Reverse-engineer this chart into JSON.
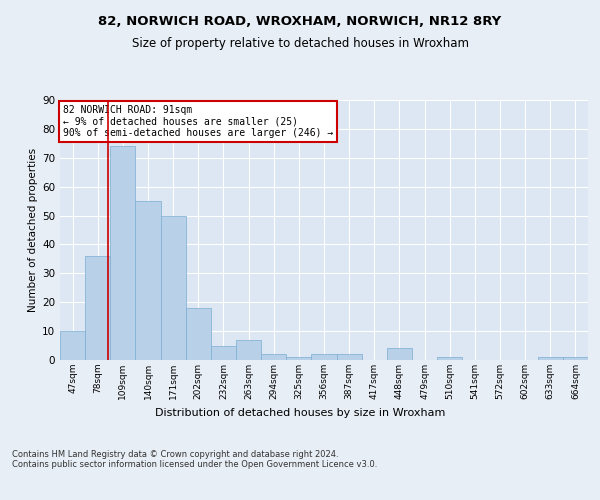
{
  "title1": "82, NORWICH ROAD, WROXHAM, NORWICH, NR12 8RY",
  "title2": "Size of property relative to detached houses in Wroxham",
  "xlabel": "Distribution of detached houses by size in Wroxham",
  "ylabel": "Number of detached properties",
  "footnote": "Contains HM Land Registry data © Crown copyright and database right 2024.\nContains public sector information licensed under the Open Government Licence v3.0.",
  "categories": [
    "47sqm",
    "78sqm",
    "109sqm",
    "140sqm",
    "171sqm",
    "202sqm",
    "232sqm",
    "263sqm",
    "294sqm",
    "325sqm",
    "356sqm",
    "387sqm",
    "417sqm",
    "448sqm",
    "479sqm",
    "510sqm",
    "541sqm",
    "572sqm",
    "602sqm",
    "633sqm",
    "664sqm"
  ],
  "values": [
    10,
    36,
    74,
    55,
    50,
    18,
    5,
    7,
    2,
    1,
    2,
    2,
    0,
    4,
    0,
    1,
    0,
    0,
    0,
    1,
    1
  ],
  "bar_color": "#b8d0e8",
  "bar_edge_color": "#7aadd4",
  "annotation_line1": "82 NORWICH ROAD: 91sqm",
  "annotation_line2": "← 9% of detached houses are smaller (25)",
  "annotation_line3": "90% of semi-detached houses are larger (246) →",
  "box_color": "#cc0000",
  "ref_line_color": "#cc0000",
  "ylim": [
    0,
    90
  ],
  "yticks": [
    0,
    10,
    20,
    30,
    40,
    50,
    60,
    70,
    80,
    90
  ],
  "background_color": "#e8eef5",
  "plot_background": "#dce7f3"
}
